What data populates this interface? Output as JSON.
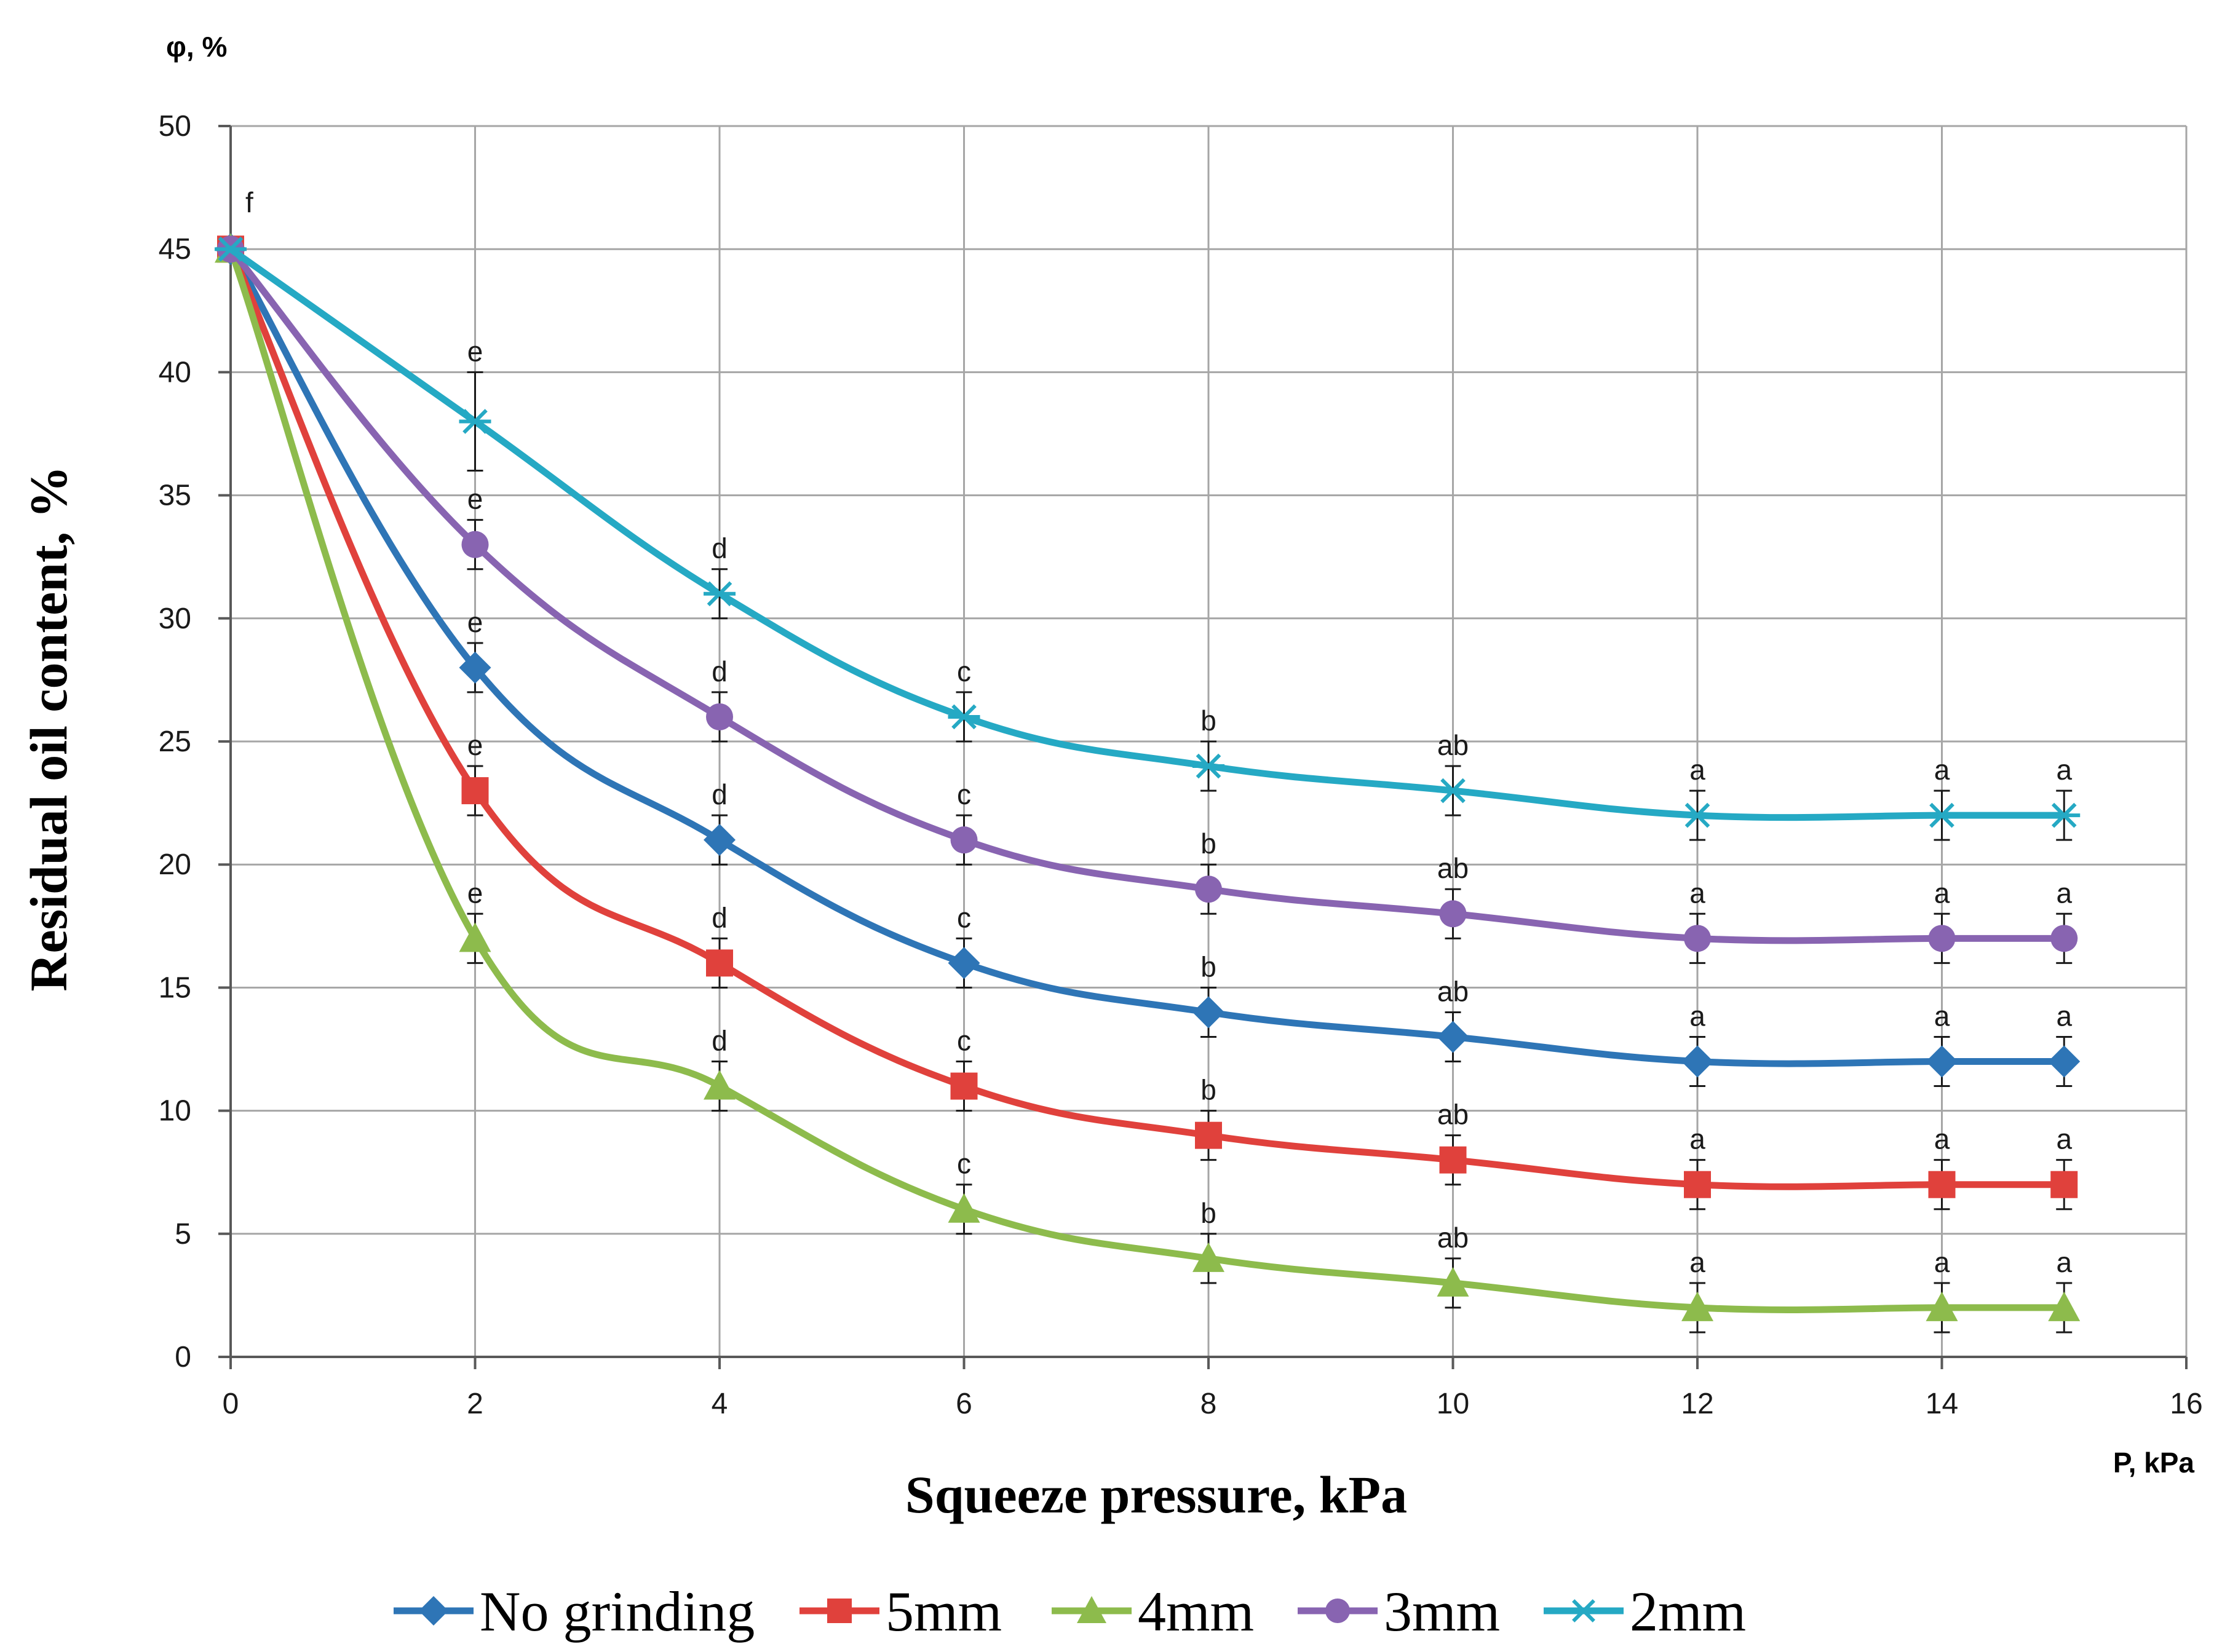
{
  "chart_data": {
    "type": "line",
    "title": "",
    "xlabel": "Squeeze pressure, kPa",
    "ylabel": "Residual oil content, %",
    "x_unit_label": "P, kPa",
    "y_unit_label": "φ, %",
    "xlim": [
      0,
      16
    ],
    "ylim": [
      0,
      50
    ],
    "xticks": [
      "0",
      "2",
      "4",
      "6",
      "8",
      "10",
      "12",
      "14",
      "16"
    ],
    "yticks": [
      "0",
      "5",
      "10",
      "15",
      "20",
      "25",
      "30",
      "35",
      "40",
      "45",
      "50"
    ],
    "grid": true,
    "legend_position": "bottom",
    "x": [
      0,
      2,
      4,
      6,
      8,
      10,
      12,
      14,
      15
    ],
    "series": [
      {
        "name": "No grinding",
        "color": "#2e75b6",
        "marker": "diamond",
        "values": [
          45,
          28,
          21,
          16,
          14,
          13,
          12,
          12,
          12
        ],
        "errors": [
          0,
          1,
          1,
          1,
          1,
          1,
          1,
          1,
          1
        ],
        "letters": [
          "",
          "e",
          "d",
          "c",
          "b",
          "ab",
          "a",
          "a",
          "a"
        ]
      },
      {
        "name": "5mm",
        "color": "#e0413c",
        "marker": "square",
        "values": [
          45,
          23,
          16,
          11,
          9,
          8,
          7,
          7,
          7
        ],
        "errors": [
          0,
          1,
          1,
          1,
          1,
          1,
          1,
          1,
          1
        ],
        "letters": [
          "",
          "e",
          "d",
          "c",
          "b",
          "ab",
          "a",
          "a",
          "a"
        ]
      },
      {
        "name": "4mm",
        "color": "#8dbb4c",
        "marker": "triangle",
        "values": [
          45,
          17,
          11,
          6,
          4,
          3,
          2,
          2,
          2
        ],
        "errors": [
          0,
          1,
          1,
          1,
          1,
          1,
          1,
          1,
          1
        ],
        "letters": [
          "",
          "e",
          "d",
          "c",
          "b",
          "ab",
          "a",
          "a",
          "a"
        ]
      },
      {
        "name": "3mm",
        "color": "#8864b1",
        "marker": "circle",
        "values": [
          45,
          33,
          26,
          21,
          19,
          18,
          17,
          17,
          17
        ],
        "errors": [
          0,
          1,
          1,
          1,
          1,
          1,
          1,
          1,
          1
        ],
        "letters": [
          "",
          "e",
          "d",
          "c",
          "b",
          "ab",
          "a",
          "a",
          "a"
        ]
      },
      {
        "name": "2mm",
        "color": "#25a9c4",
        "marker": "star",
        "values": [
          45,
          38,
          31,
          26,
          24,
          23,
          22,
          22,
          22
        ],
        "errors": [
          0,
          2,
          1,
          1,
          1,
          1,
          1,
          1,
          1
        ],
        "letters": [
          "f",
          "e",
          "d",
          "c",
          "b",
          "ab",
          "a",
          "a",
          "a"
        ]
      }
    ]
  }
}
